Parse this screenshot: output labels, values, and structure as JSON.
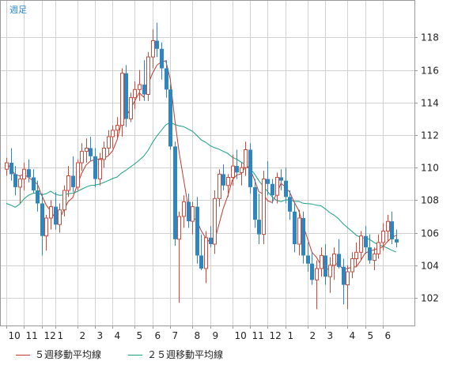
{
  "period_label": "週足",
  "chart_data": {
    "type": "candlestick",
    "title": "",
    "xlabel": "",
    "ylabel": "",
    "ylim": [
      100.3,
      120.3
    ],
    "yticks": [
      102,
      104,
      106,
      108,
      110,
      112,
      114,
      116,
      118
    ],
    "xtick_labels": [
      "10",
      "11",
      "12",
      "1",
      "2",
      "3",
      "4",
      "5",
      "6",
      "7",
      "8",
      "9",
      "10",
      "11",
      "12",
      "1",
      "2",
      "3",
      "4",
      "5",
      "6"
    ],
    "xtick_weeks": [
      0,
      4,
      8,
      11,
      16,
      20,
      24,
      29,
      33,
      37,
      42,
      46,
      51,
      55,
      59,
      63,
      68,
      72,
      77,
      81,
      85
    ],
    "grid": true,
    "legend": "bottom",
    "colors": {
      "up": "#d04a3c",
      "down": "#2e86c1",
      "ma5": "#c0392b",
      "ma25": "#16a085",
      "grid": "#d0d0d0"
    },
    "series": [
      {
        "name": "５週移動平均線"
      },
      {
        "name": "２５週移動平均線"
      }
    ],
    "candles": [
      [
        109.9,
        110.6,
        109.5,
        110.3
      ],
      [
        110.3,
        111.2,
        109.2,
        109.6
      ],
      [
        109.6,
        110.1,
        108.3,
        108.8
      ],
      [
        108.8,
        109.5,
        107.8,
        109.3
      ],
      [
        109.3,
        110.3,
        108.6,
        109.9
      ],
      [
        109.9,
        110.5,
        109.1,
        109.4
      ],
      [
        109.4,
        109.9,
        108.4,
        108.6
      ],
      [
        108.6,
        109.2,
        107.3,
        107.8
      ],
      [
        107.8,
        108.4,
        104.6,
        105.8
      ],
      [
        105.8,
        107.1,
        104.9,
        106.9
      ],
      [
        106.9,
        108.0,
        106.2,
        107.6
      ],
      [
        107.6,
        108.5,
        106.2,
        106.5
      ],
      [
        106.5,
        107.8,
        106.0,
        107.4
      ],
      [
        107.4,
        108.9,
        107.0,
        108.6
      ],
      [
        108.6,
        110.1,
        108.2,
        109.5
      ],
      [
        109.5,
        110.7,
        108.5,
        108.8
      ],
      [
        108.8,
        110.5,
        108.6,
        110.3
      ],
      [
        110.3,
        111.5,
        109.8,
        111.0
      ],
      [
        111.0,
        111.8,
        110.3,
        111.2
      ],
      [
        111.2,
        111.9,
        110.4,
        110.7
      ],
      [
        110.7,
        111.2,
        108.8,
        109.3
      ],
      [
        109.3,
        110.9,
        108.9,
        110.5
      ],
      [
        110.5,
        111.6,
        110.0,
        111.2
      ],
      [
        111.2,
        112.3,
        110.8,
        111.9
      ],
      [
        111.9,
        112.6,
        111.2,
        112.3
      ],
      [
        112.3,
        113.1,
        111.8,
        112.6
      ],
      [
        112.6,
        116.1,
        111.9,
        115.8
      ],
      [
        115.8,
        116.3,
        112.5,
        113.0
      ],
      [
        113.0,
        114.6,
        112.8,
        114.3
      ],
      [
        114.3,
        115.3,
        113.6,
        114.8
      ],
      [
        114.8,
        116.0,
        114.1,
        115.1
      ],
      [
        115.1,
        116.6,
        114.1,
        114.5
      ],
      [
        114.5,
        117.1,
        114.1,
        116.8
      ],
      [
        116.8,
        118.5,
        116.1,
        117.8
      ],
      [
        117.8,
        118.9,
        116.8,
        117.3
      ],
      [
        117.3,
        117.7,
        115.4,
        116.1
      ],
      [
        116.1,
        116.6,
        114.3,
        114.8
      ],
      [
        114.8,
        115.1,
        111.1,
        111.3
      ],
      [
        111.3,
        111.6,
        105.2,
        105.6
      ],
      [
        105.6,
        107.3,
        101.7,
        107.0
      ],
      [
        107.0,
        108.3,
        106.3,
        107.9
      ],
      [
        107.9,
        108.4,
        106.3,
        106.7
      ],
      [
        106.7,
        107.9,
        105.9,
        107.6
      ],
      [
        107.6,
        108.2,
        104.1,
        104.6
      ],
      [
        104.6,
        105.9,
        103.7,
        103.8
      ],
      [
        103.8,
        106.1,
        102.9,
        105.7
      ],
      [
        105.7,
        106.4,
        105.1,
        105.3
      ],
      [
        105.3,
        108.6,
        104.7,
        108.1
      ],
      [
        108.1,
        109.9,
        107.6,
        109.6
      ],
      [
        109.6,
        110.2,
        108.6,
        108.9
      ],
      [
        108.9,
        109.6,
        108.2,
        109.4
      ],
      [
        109.4,
        110.8,
        108.9,
        110.1
      ],
      [
        110.1,
        111.1,
        109.3,
        109.7
      ],
      [
        109.7,
        110.3,
        108.9,
        110.0
      ],
      [
        110.0,
        111.6,
        109.5,
        111.1
      ],
      [
        111.1,
        111.5,
        108.4,
        108.8
      ],
      [
        108.8,
        109.3,
        106.3,
        106.8
      ],
      [
        106.8,
        108.4,
        105.3,
        105.9
      ],
      [
        105.9,
        109.8,
        105.3,
        109.3
      ],
      [
        109.3,
        110.4,
        108.3,
        109.0
      ],
      [
        109.0,
        109.3,
        107.8,
        108.3
      ],
      [
        108.3,
        109.7,
        107.8,
        109.4
      ],
      [
        109.4,
        109.9,
        108.6,
        109.2
      ],
      [
        109.2,
        110.0,
        107.8,
        108.2
      ],
      [
        108.2,
        108.6,
        106.8,
        107.3
      ],
      [
        107.3,
        107.8,
        104.8,
        105.3
      ],
      [
        105.3,
        107.4,
        104.6,
        106.9
      ],
      [
        106.9,
        107.3,
        104.1,
        104.6
      ],
      [
        104.6,
        105.4,
        103.6,
        104.1
      ],
      [
        104.1,
        104.8,
        102.8,
        103.1
      ],
      [
        103.1,
        104.3,
        101.3,
        103.8
      ],
      [
        103.8,
        105.1,
        103.3,
        104.6
      ],
      [
        104.6,
        105.3,
        102.8,
        103.3
      ],
      [
        103.3,
        104.5,
        102.3,
        104.0
      ],
      [
        104.0,
        105.1,
        103.1,
        104.7
      ],
      [
        104.7,
        105.6,
        103.8,
        103.9
      ],
      [
        103.9,
        104.4,
        101.6,
        102.8
      ],
      [
        102.8,
        104.0,
        101.3,
        103.6
      ],
      [
        103.6,
        104.8,
        103.2,
        104.4
      ],
      [
        104.4,
        105.4,
        103.9,
        104.8
      ],
      [
        104.8,
        106.1,
        104.3,
        105.8
      ],
      [
        105.8,
        106.4,
        104.7,
        105.1
      ],
      [
        105.1,
        105.9,
        104.1,
        104.3
      ],
      [
        104.3,
        105.1,
        103.7,
        104.7
      ],
      [
        104.7,
        105.9,
        104.4,
        105.4
      ],
      [
        105.4,
        106.6,
        104.9,
        106.1
      ],
      [
        106.1,
        107.1,
        105.5,
        106.7
      ],
      [
        106.7,
        107.3,
        105.3,
        105.6
      ],
      [
        105.6,
        106.2,
        105.1,
        105.4
      ]
    ]
  }
}
